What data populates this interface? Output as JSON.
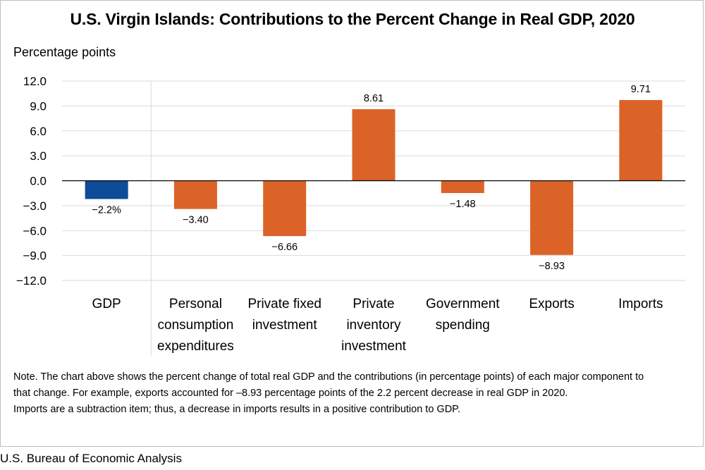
{
  "title": "U.S. Virgin Islands: Contributions to the Percent Change in Real GDP, 2020",
  "y_axis_title": "Percentage points",
  "chart_data": {
    "type": "bar",
    "title": "U.S. Virgin Islands: Contributions to the Percent Change in Real GDP, 2020",
    "ylabel": "Percentage points",
    "xlabel": "",
    "ylim": [
      -12.0,
      12.0
    ],
    "yticks": [
      12.0,
      9.0,
      6.0,
      3.0,
      0.0,
      -3.0,
      -6.0,
      -9.0,
      -12.0
    ],
    "ytick_labels": [
      "12.0",
      "9.0",
      "6.0",
      "3.0",
      "0.0",
      "−3.0",
      "−6.0",
      "−9.0",
      "−12.0"
    ],
    "grid": true,
    "categories": [
      [
        "GDP"
      ],
      [
        "Personal",
        "consumption",
        "expenditures"
      ],
      [
        "Private fixed",
        "investment"
      ],
      [
        "Private",
        "inventory",
        "investment"
      ],
      [
        "Government",
        "spending"
      ],
      [
        "Exports"
      ],
      [
        "Imports"
      ]
    ],
    "values": [
      -2.2,
      -3.4,
      -6.66,
      8.61,
      -1.48,
      -8.93,
      9.71
    ],
    "data_labels": [
      "−2.2%",
      "−3.40",
      "−6.66",
      "8.61",
      "−1.48",
      "−8.93",
      "9.71"
    ],
    "colors": [
      "#0e4c9a",
      "#dc6328",
      "#dc6328",
      "#dc6328",
      "#dc6328",
      "#dc6328",
      "#dc6328"
    ]
  },
  "note_lines": [
    "Note. The chart above shows the percent change of total real GDP and the contributions (in percentage points) of each major component to",
    "that change. For example, exports accounted for –8.93 percentage points of the 2.2 percent decrease in real GDP in 2020.",
    "Imports are a subtraction item; thus, a decrease in imports results in a positive contribution to GDP."
  ],
  "source": "U.S. Bureau of Economic Analysis"
}
